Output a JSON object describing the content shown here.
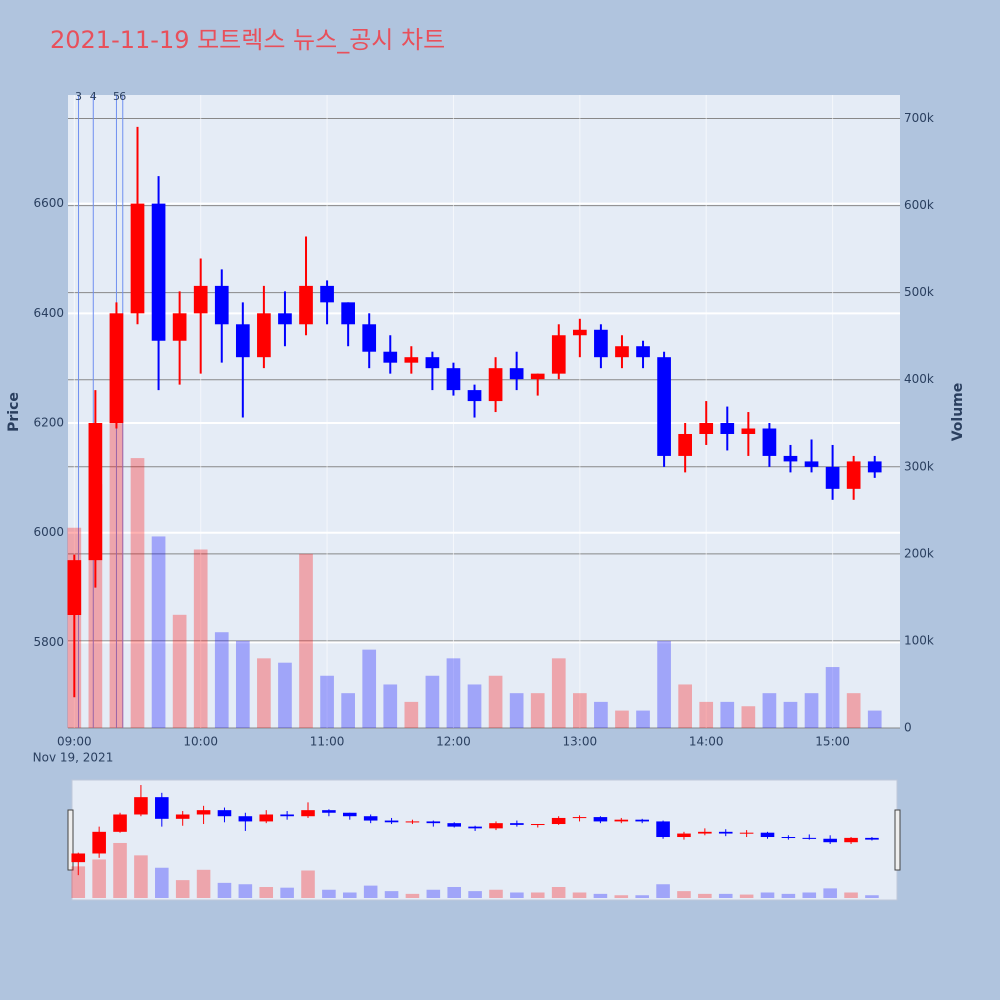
{
  "chart_data": {
    "type": "candlestick",
    "title": "2021-11-19 모트렉스 뉴스_공시 차트",
    "y_label": "Price",
    "y2_label": "Volume",
    "xdate": "Nov 19, 2021",
    "up_color": "#ff0000",
    "down_color": "#0000ff",
    "grid": true,
    "xlim": [
      "08:57",
      "15:32"
    ],
    "xticks": [
      "09:00",
      "10:00",
      "11:00",
      "12:00",
      "13:00",
      "14:00",
      "15:00"
    ],
    "ylim": [
      5644,
      6798
    ],
    "yticks": [
      5800,
      6000,
      6200,
      6400,
      6600
    ],
    "y2lim": [
      0,
      727000
    ],
    "y2ticks": [
      0,
      {
        "value": 100000,
        "label": "100k"
      },
      {
        "value": 200000,
        "label": "200k"
      },
      {
        "value": 300000,
        "label": "300k"
      },
      {
        "value": 400000,
        "label": "400k"
      },
      {
        "value": 500000,
        "label": "500k"
      },
      {
        "value": 600000,
        "label": "600k"
      },
      {
        "value": 700000,
        "label": "700k"
      }
    ],
    "events": [
      {
        "label": "3",
        "x": "09:02"
      },
      {
        "label": "4",
        "x": "09:09"
      },
      {
        "label": "5",
        "x": "09:20"
      },
      {
        "label": "6",
        "x": "09:23"
      }
    ],
    "x": [
      "09:00",
      "09:10",
      "09:20",
      "09:30",
      "09:40",
      "09:50",
      "10:00",
      "10:10",
      "10:20",
      "10:30",
      "10:40",
      "10:50",
      "11:00",
      "11:10",
      "11:20",
      "11:30",
      "11:40",
      "11:50",
      "12:00",
      "12:10",
      "12:20",
      "12:30",
      "12:40",
      "12:50",
      "13:00",
      "13:10",
      "13:20",
      "13:30",
      "13:40",
      "13:50",
      "14:00",
      "14:10",
      "14:20",
      "14:30",
      "14:40",
      "14:50",
      "15:00",
      "15:10",
      "15:20"
    ],
    "open": [
      5850,
      5950,
      6200,
      6400,
      6600,
      6350,
      6400,
      6450,
      6380,
      6320,
      6400,
      6380,
      6450,
      6420,
      6380,
      6330,
      6310,
      6320,
      6300,
      6260,
      6240,
      6300,
      6280,
      6290,
      6360,
      6370,
      6320,
      6340,
      6320,
      6140,
      6180,
      6200,
      6180,
      6190,
      6140,
      6130,
      6120,
      6080,
      6130
    ],
    "high": [
      5960,
      6260,
      6420,
      6740,
      6650,
      6440,
      6500,
      6480,
      6420,
      6450,
      6440,
      6540,
      6460,
      6420,
      6400,
      6360,
      6340,
      6330,
      6310,
      6270,
      6320,
      6330,
      6290,
      6380,
      6390,
      6380,
      6360,
      6350,
      6330,
      6200,
      6240,
      6230,
      6220,
      6200,
      6160,
      6170,
      6160,
      6140,
      6140
    ],
    "low": [
      5700,
      5900,
      6190,
      6380,
      6260,
      6270,
      6290,
      6310,
      6210,
      6300,
      6340,
      6360,
      6380,
      6340,
      6300,
      6290,
      6290,
      6260,
      6250,
      6210,
      6220,
      6260,
      6250,
      6280,
      6320,
      6300,
      6300,
      6300,
      6120,
      6110,
      6160,
      6150,
      6140,
      6120,
      6110,
      6110,
      6060,
      6060,
      6100
    ],
    "close": [
      5950,
      6200,
      6400,
      6600,
      6350,
      6400,
      6450,
      6380,
      6320,
      6400,
      6380,
      6450,
      6420,
      6380,
      6330,
      6310,
      6320,
      6300,
      6260,
      6240,
      6300,
      6280,
      6290,
      6360,
      6370,
      6320,
      6340,
      6320,
      6140,
      6180,
      6200,
      6180,
      6190,
      6140,
      6130,
      6120,
      6080,
      6130,
      6110
    ],
    "volume": [
      230000,
      280000,
      400000,
      310000,
      220000,
      130000,
      205000,
      110000,
      100000,
      80000,
      75000,
      200000,
      60000,
      40000,
      90000,
      50000,
      30000,
      60000,
      80000,
      50000,
      60000,
      40000,
      40000,
      80000,
      40000,
      30000,
      20000,
      20000,
      100000,
      50000,
      30000,
      30000,
      25000,
      40000,
      30000,
      40000,
      70000,
      40000,
      20000
    ]
  }
}
